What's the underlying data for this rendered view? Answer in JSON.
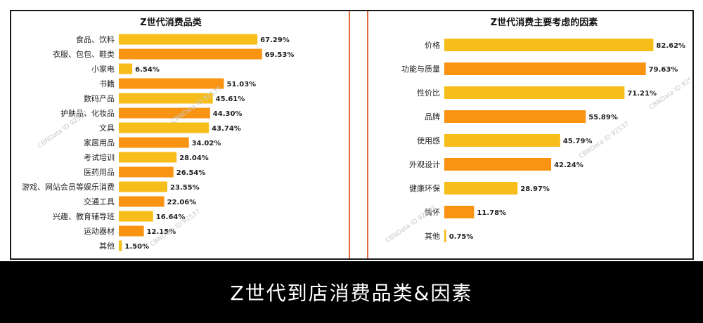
{
  "caption": "Z世代到店消费品类&因素",
  "watermark": "CBNData ID 92537",
  "colors": {
    "bar_light": "#f7bd1a",
    "bar_dark": "#f89412",
    "divider": "#e06a3a"
  },
  "chart_data": [
    {
      "type": "bar",
      "orientation": "horizontal",
      "title": "Z世代消费品类",
      "categories": [
        "食品、饮料",
        "衣服、包包、鞋类",
        "小家电",
        "书籍",
        "数码产品",
        "护肤品、化妆品",
        "文具",
        "家居用品",
        "考试培训",
        "医药用品",
        "游戏、网站会员等娱乐消费",
        "交通工具",
        "兴趣、教育辅导班",
        "运动器材",
        "其他"
      ],
      "values": [
        67.29,
        69.53,
        6.54,
        51.03,
        45.61,
        44.3,
        43.74,
        34.02,
        28.04,
        26.54,
        23.55,
        22.06,
        16.64,
        12.15,
        1.5
      ],
      "value_labels": [
        "67.29%",
        "69.53%",
        "6.54%",
        "51.03%",
        "45.61%",
        "44.30%",
        "43.74%",
        "34.02%",
        "28.04%",
        "26.54%",
        "23.55%",
        "22.06%",
        "16.64%",
        "12.15%",
        "1.50%"
      ],
      "unit": "%",
      "xlim": [
        0,
        100
      ]
    },
    {
      "type": "bar",
      "orientation": "horizontal",
      "title": "Z世代消费主要考虑的因素",
      "categories": [
        "价格",
        "功能与质量",
        "性价比",
        "品牌",
        "使用感",
        "外观设计",
        "健康环保",
        "情怀",
        "其他"
      ],
      "values": [
        82.62,
        79.63,
        71.21,
        55.89,
        45.79,
        42.24,
        28.97,
        11.78,
        0.75
      ],
      "value_labels": [
        "82.62%",
        "79.63%",
        "71.21%",
        "55.89%",
        "45.79%",
        "42.24%",
        "28.97%",
        "11.78%",
        "0.75%"
      ],
      "unit": "%",
      "xlim": [
        0,
        100
      ]
    }
  ]
}
